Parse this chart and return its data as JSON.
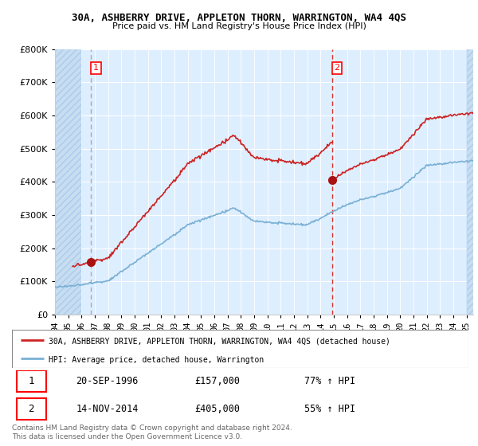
{
  "title": "30A, ASHBERRY DRIVE, APPLETON THORN, WARRINGTON, WA4 4QS",
  "subtitle": "Price paid vs. HM Land Registry's House Price Index (HPI)",
  "sale1_price": 157000,
  "sale1_x": 1996.72,
  "sale2_price": 405000,
  "sale2_x": 2014.87,
  "hpi_line_color": "#7ab0d4",
  "price_line_color": "#cc2222",
  "sale1_vline_color": "#aaaaaa",
  "sale2_vline_color": "#dd3333",
  "dot_color": "#aa1111",
  "legend_property": "30A, ASHBERRY DRIVE, APPLETON THORN, WARRINGTON, WA4 4QS (detached house)",
  "legend_hpi": "HPI: Average price, detached house, Warrington",
  "table_row1": [
    "1",
    "20-SEP-1996",
    "£157,000",
    "77% ↑ HPI"
  ],
  "table_row2": [
    "2",
    "14-NOV-2014",
    "£405,000",
    "55% ↑ HPI"
  ],
  "footnote": "Contains HM Land Registry data © Crown copyright and database right 2024.\nThis data is licensed under the Open Government Licence v3.0.",
  "ylim_max": 800000,
  "xmin": 1994.0,
  "xmax": 2025.5,
  "bg_color": "#ddeeff",
  "bg_hatch_color": "#c8ddf0"
}
